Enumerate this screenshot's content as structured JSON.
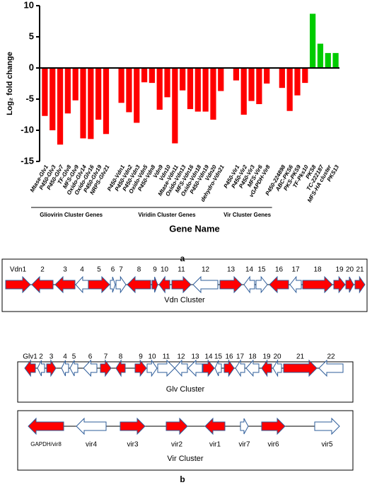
{
  "chart_data": {
    "type": "bar",
    "ylabel": "Log₂ fold change",
    "xlabel": "Gene Name",
    "ylim": [
      -15,
      10
    ],
    "yticks": [
      -15,
      -10,
      -5,
      0,
      5,
      10
    ],
    "negative_color": "#ff0000",
    "positive_color": "#00cc00",
    "groups": [
      {
        "label": "Gliovirin Cluster Genes",
        "categories": [
          "Mtase-Glv1",
          "P450-Glv3",
          "P450-Glv7",
          "TF-Glv8",
          "MFS-Glv9",
          "Oxido-Glv14",
          "Oxido-Glv16",
          "P450-Glv19",
          "NRPS-Glv21"
        ],
        "values": [
          -7.7,
          -10,
          -12.3,
          -7.3,
          -5.2,
          -11.3,
          -11.4,
          -8.3,
          -10.6
        ]
      },
      {
        "label": "Viridin Cluster Genes",
        "categories": [
          "P450-Vdn1",
          "P450-Vdn2",
          "P450-Vdn3",
          "Oxido-Vdn5",
          "P450-Vdn8",
          "Vdn9",
          "Vdn10",
          "Mtase-Vdn11",
          "Oxido-Vdn13",
          "MFS-Vdn16",
          "Oxido-Vdn18",
          "P450-Vdn19",
          "Vdn20",
          "dehydro-Vdn21"
        ],
        "values": [
          -5.6,
          -7.1,
          -8.8,
          -2.3,
          -2.4,
          -6.7,
          -4.7,
          -12.1,
          -3.6,
          -6.6,
          -7.0,
          -7.0,
          -8.3,
          -3.7
        ]
      },
      {
        "label": "Vir Cluster Genes",
        "categories": [
          "P450-Vir1",
          "P450-Vir2",
          "P450-Vir3",
          "MFS-Vir6",
          "vGAPDH-Vir8"
        ],
        "values": [
          -2.0,
          -7.5,
          -5.3,
          -5.8,
          -2.5
        ]
      },
      {
        "categories": [
          "P450-224898",
          "ABC-PKS6",
          "PKS-PKS9",
          "TF-Pks10",
          "PKS8",
          "TC-222187",
          "MFS-HA cluster",
          "PKS13"
        ],
        "values": [
          -3.2,
          -6.9,
          -4.4,
          -2.4,
          8.7,
          3.9,
          2.4,
          2.4
        ]
      }
    ]
  },
  "panel_labels": [
    "a",
    "b"
  ],
  "gene_clusters": [
    {
      "name": "Vdn Cluster",
      "genes": [
        {
          "label": "Vdn1",
          "dir": "right",
          "filled": true
        },
        {
          "label": "2",
          "dir": "left",
          "filled": true
        },
        {
          "label": "3",
          "dir": "left",
          "filled": true
        },
        {
          "label": "4",
          "dir": "left",
          "filled": false
        },
        {
          "label": "5",
          "dir": "right",
          "filled": true
        },
        {
          "label": "6",
          "dir": "right",
          "filled": false
        },
        {
          "label": "7",
          "dir": "right",
          "filled": false
        },
        {
          "label": "8",
          "dir": "left",
          "filled": true
        },
        {
          "label": "9",
          "dir": "right",
          "filled": true
        },
        {
          "label": "10",
          "dir": "left",
          "filled": true
        },
        {
          "label": "11",
          "dir": "right",
          "filled": true
        },
        {
          "label": "12",
          "dir": "left",
          "filled": false
        },
        {
          "label": "13",
          "dir": "right",
          "filled": true
        },
        {
          "label": "14",
          "dir": "left",
          "filled": false
        },
        {
          "label": "15",
          "dir": "right",
          "filled": false
        },
        {
          "label": "16",
          "dir": "left",
          "filled": true
        },
        {
          "label": "17",
          "dir": "left",
          "filled": false
        },
        {
          "label": "18",
          "dir": "right",
          "filled": true
        },
        {
          "label": "19",
          "dir": "right",
          "filled": true
        },
        {
          "label": "20",
          "dir": "right",
          "filled": true
        },
        {
          "label": "21",
          "dir": "right",
          "filled": true
        }
      ]
    },
    {
      "name": "Glv Cluster",
      "genes": [
        {
          "label": "Glv1",
          "dir": "left",
          "filled": true
        },
        {
          "label": "2",
          "dir": "left",
          "filled": false
        },
        {
          "label": "3",
          "dir": "right",
          "filled": true
        },
        {
          "label": "4",
          "dir": "left",
          "filled": false
        },
        {
          "label": "5",
          "dir": "left",
          "filled": false
        },
        {
          "label": "6",
          "dir": "left",
          "filled": false
        },
        {
          "label": "7",
          "dir": "right",
          "filled": true
        },
        {
          "label": "8",
          "dir": "left",
          "filled": true
        },
        {
          "label": "9",
          "dir": "right",
          "filled": true
        },
        {
          "label": "10",
          "dir": "right",
          "filled": false
        },
        {
          "label": "11",
          "dir": "right",
          "filled": false
        },
        {
          "label": "12",
          "dir": "left",
          "filled": false
        },
        {
          "label": "13",
          "dir": "left",
          "filled": false
        },
        {
          "label": "14",
          "dir": "right",
          "filled": true
        },
        {
          "label": "15",
          "dir": "left",
          "filled": false
        },
        {
          "label": "16",
          "dir": "right",
          "filled": true
        },
        {
          "label": "17",
          "dir": "left",
          "filled": false
        },
        {
          "label": "18",
          "dir": "left",
          "filled": false
        },
        {
          "label": "19",
          "dir": "left",
          "filled": true
        },
        {
          "label": "20",
          "dir": "left",
          "filled": false
        },
        {
          "label": "21",
          "dir": "right",
          "filled": true
        },
        {
          "label": "22",
          "dir": "left",
          "filled": false
        }
      ]
    },
    {
      "name": "Vir Cluster",
      "genes": [
        {
          "label": "GAPDH/vir8",
          "dir": "left",
          "filled": true
        },
        {
          "label": "vir4",
          "dir": "left",
          "filled": false
        },
        {
          "label": "vir3",
          "dir": "right",
          "filled": true
        },
        {
          "label": "vir2",
          "dir": "right",
          "filled": true
        },
        {
          "label": "vir1",
          "dir": "left",
          "filled": true
        },
        {
          "label": "vir7",
          "dir": "right",
          "filled": false
        },
        {
          "label": "vir6",
          "dir": "right",
          "filled": true
        },
        {
          "label": "vir5",
          "dir": "right",
          "filled": false
        }
      ]
    }
  ]
}
